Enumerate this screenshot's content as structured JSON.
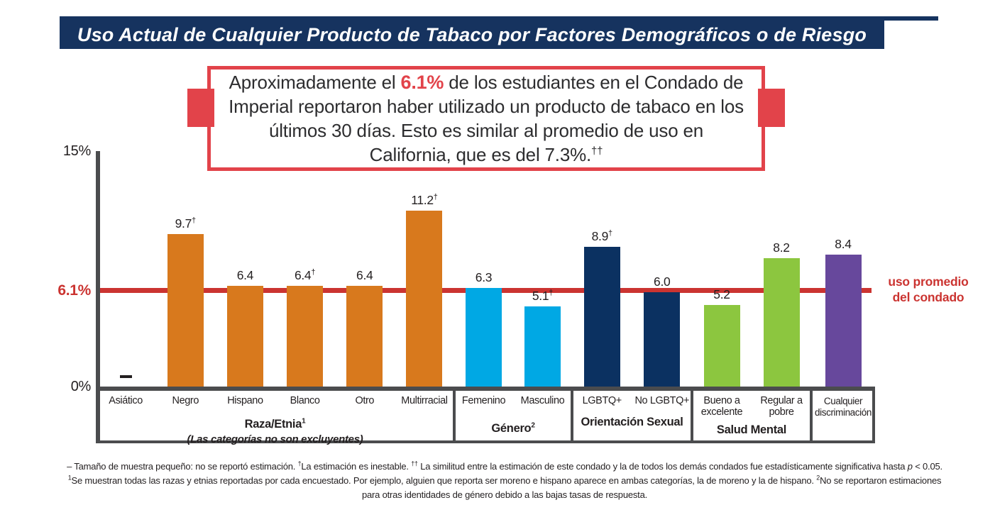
{
  "title": "Uso Actual de Cualquier Producto de Tabaco por Factores Demográficos o de Riesgo",
  "callout": {
    "segments": [
      {
        "text": "Aproximadamente el ",
        "style": "normal"
      },
      {
        "text": "6.1%",
        "style": "highlight"
      },
      {
        "text": " de los estudiantes en el Condado de Imperial reportaron haber utilizado un producto de tabaco en los últimos 30 días. Esto es similar al promedio de uso en California, que es del 7.3%.",
        "style": "normal"
      },
      {
        "text": "††",
        "style": "sup"
      }
    ]
  },
  "chart_data": {
    "type": "bar",
    "title": "Uso Actual de Cualquier Producto de Tabaco por Factores Demográficos o de Riesgo",
    "ylim": [
      0,
      15
    ],
    "yticks": [
      {
        "label": "15%",
        "value": 15
      },
      {
        "label": "0%",
        "value": 0
      }
    ],
    "grid": false,
    "reference_line": {
      "value": 6.1,
      "axis_label": "6.1%",
      "right_label_line1": "uso promedio",
      "right_label_line2": "del condado",
      "color": "#cb3431"
    },
    "groups": [
      {
        "label": "Raza/Etnia",
        "label_sup": "1",
        "sublabel": "(Las categorías no son excluyentes)",
        "color": "#d8791d",
        "bars": [
          {
            "category": "Asiático",
            "value": null,
            "note": "—"
          },
          {
            "category": "Negro",
            "value": 9.7,
            "value_label": "9.7",
            "flag": "†"
          },
          {
            "category": "Hispano",
            "value": 6.4,
            "value_label": "6.4"
          },
          {
            "category": "Blanco",
            "value": 6.4,
            "value_label": "6.4",
            "flag": "†"
          },
          {
            "category": "Otro",
            "value": 6.4,
            "value_label": "6.4"
          },
          {
            "category": "Multirracial",
            "value": 11.2,
            "value_label": "11.2",
            "flag": "†"
          }
        ]
      },
      {
        "label": "Género",
        "label_sup": "2",
        "color": "#00a8e4",
        "bars": [
          {
            "category": "Femenino",
            "value": 6.3,
            "value_label": "6.3"
          },
          {
            "category": "Masculino",
            "value": 5.1,
            "value_label": "5.1",
            "flag": "†"
          }
        ]
      },
      {
        "label": "Orientación Sexual",
        "color": "#0b3161",
        "bars": [
          {
            "category": "LGBTQ+",
            "value": 8.9,
            "value_label": "8.9",
            "flag": "†"
          },
          {
            "category": "No LGBTQ+",
            "value": 6.0,
            "value_label": "6.0"
          }
        ]
      },
      {
        "label": "Salud Mental",
        "color": "#8cc63f",
        "bars": [
          {
            "category": "Bueno a excelente",
            "value": 5.2,
            "value_label": "5.2"
          },
          {
            "category": "Regular a pobre",
            "value": 8.2,
            "value_label": "8.2"
          }
        ]
      },
      {
        "label": "",
        "color": "#67489c",
        "bars": [
          {
            "category": "Cualquier discriminación",
            "value": 8.4,
            "value_label": "8.4"
          }
        ]
      }
    ]
  },
  "footnotes": {
    "lines": [
      [
        {
          "text": "– Tamaño de muestra pequeño: no se reportó estimación. "
        },
        {
          "text": "†",
          "sup": true
        },
        {
          "text": "La estimación es inestable. "
        },
        {
          "text": "††",
          "sup": true
        },
        {
          "text": " La similitud entre la estimación de este condado y la de todos los demás condados fue estadísticamente significativa hasta "
        },
        {
          "text": "p",
          "italic": true
        },
        {
          "text": " < 0.05."
        }
      ],
      [
        {
          "text": "1",
          "sup": true
        },
        {
          "text": "Se muestran todas las razas y etnias reportadas por cada encuestado. Por ejemplo, alguien que reporta ser moreno e hispano aparece en ambas categorías, la de moreno y la de hispano. "
        },
        {
          "text": "2",
          "sup": true
        },
        {
          "text": "No se reportaron estimaciones"
        }
      ],
      [
        {
          "text": "para otras identidades de género debido a las bajas tasas de respuesta."
        }
      ]
    ]
  },
  "colors": {
    "navy": "#16335f",
    "axis_gray": "#4b4c4e",
    "line_red": "#cb3431",
    "accent_red": "#e2434a",
    "text": "#231f20"
  }
}
